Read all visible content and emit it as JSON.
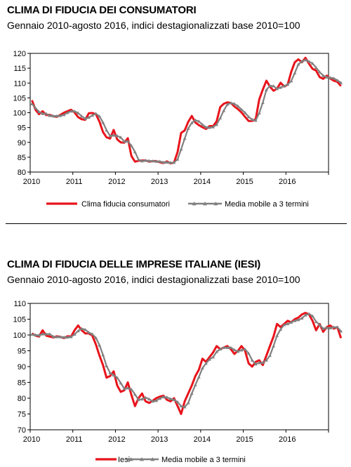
{
  "chart_data": [
    {
      "type": "line",
      "title": "CLIMA DI FIDUCIA DEI CONSUMATORI",
      "subtitle": "Gennaio 2010-agosto 2016, indici destagionalizzati base 2010=100",
      "x_tick_labels": [
        "2010",
        "2011",
        "2012",
        "2013",
        "2014",
        "2015",
        "2016"
      ],
      "y_tick_labels": [
        "80",
        "85",
        "90",
        "95",
        "100",
        "105",
        "110",
        "115",
        "120"
      ],
      "ylim": [
        80,
        120
      ],
      "x_start": "2010-01",
      "x_end": "2016-08",
      "grid": false,
      "legend_position": "bottom",
      "series": [
        {
          "name": "Clima fiducia consumatori",
          "color": "#e8141b",
          "values": [
            104.2,
            101.0,
            99.5,
            100.5,
            99.2,
            99.3,
            98.8,
            98.6,
            99.3,
            100.0,
            100.5,
            101.0,
            100.1,
            98.5,
            97.8,
            97.6,
            99.8,
            99.9,
            99.5,
            97.0,
            93.5,
            91.7,
            91.3,
            94.2,
            91.0,
            90.0,
            89.9,
            91.4,
            85.4,
            83.5,
            83.8,
            83.9,
            83.9,
            83.5,
            83.7,
            83.7,
            83.3,
            83.0,
            83.6,
            82.9,
            83.2,
            86.8,
            93.2,
            94.0,
            96.9,
            98.9,
            96.7,
            95.8,
            95.1,
            94.5,
            95.5,
            95.5,
            97.1,
            101.9,
            103.0,
            103.5,
            103.3,
            102.1,
            101.2,
            100.1,
            98.6,
            97.2,
            97.2,
            97.9,
            104.5,
            107.8,
            110.8,
            108.8,
            107.4,
            108.1,
            110.1,
            108.8,
            109.5,
            113.8,
            117.0,
            118.0,
            117.0,
            118.5,
            116.5,
            114.8,
            114.2,
            112.0,
            111.4,
            112.5,
            111.5,
            110.8,
            110.4,
            109.0
          ]
        },
        {
          "name": "Media mobile a 3 termini",
          "color": "#808080",
          "values": [
            103.0,
            101.6,
            100.3,
            99.7,
            99.7,
            99.0,
            98.9,
            98.9,
            99.0,
            99.3,
            100.0,
            100.5,
            100.5,
            99.9,
            98.8,
            98.0,
            98.4,
            99.1,
            99.7,
            98.8,
            96.7,
            94.1,
            92.2,
            92.4,
            92.2,
            91.7,
            90.3,
            90.4,
            88.9,
            86.8,
            84.2,
            83.7,
            83.9,
            83.8,
            83.7,
            83.6,
            83.6,
            83.3,
            83.3,
            83.2,
            83.2,
            84.3,
            87.7,
            91.3,
            94.7,
            96.6,
            97.5,
            97.1,
            96.0,
            95.1,
            95.0,
            95.2,
            96.0,
            98.2,
            100.7,
            102.8,
            103.3,
            103.0,
            102.2,
            101.1,
            100.0,
            98.6,
            97.7,
            97.4,
            99.9,
            103.4,
            107.7,
            109.1,
            109.0,
            108.1,
            108.5,
            109.0,
            109.5,
            110.7,
            113.4,
            116.3,
            117.3,
            117.8,
            117.3,
            116.6,
            115.2,
            113.7,
            112.5,
            112.0,
            111.8,
            111.6,
            110.9,
            110.1
          ]
        }
      ]
    },
    {
      "type": "line",
      "title": "CLIMA DI FIDUCIA DELLE IMPRESE ITALIANE (IESI)",
      "subtitle": "Gennaio 2010-agosto 2016, indici destagionalizzati base 2010=100",
      "x_tick_labels": [
        "2010",
        "2011",
        "2012",
        "2013",
        "2014",
        "2015",
        "2016"
      ],
      "y_tick_labels": [
        "70",
        "75",
        "80",
        "85",
        "90",
        "95",
        "100",
        "105",
        "110"
      ],
      "ylim": [
        70,
        110
      ],
      "x_start": "2010-01",
      "x_end": "2016-08",
      "grid": false,
      "legend_position": "bottom",
      "series": [
        {
          "name": "Iesi",
          "color": "#e8141b",
          "values": [
            100.5,
            99.8,
            99.5,
            101.5,
            99.8,
            99.5,
            99.2,
            99.6,
            99.4,
            99.0,
            99.6,
            99.5,
            101.5,
            103.0,
            101.5,
            100.5,
            100.5,
            99.8,
            97.0,
            93.5,
            90.5,
            86.5,
            87.0,
            88.5,
            84.0,
            82.0,
            82.5,
            85.0,
            81.0,
            77.5,
            80.0,
            81.5,
            79.0,
            78.5,
            79.2,
            80.0,
            80.5,
            80.8,
            79.5,
            79.0,
            80.0,
            77.5,
            75.0,
            79.0,
            81.5,
            84.0,
            87.0,
            89.0,
            92.5,
            91.5,
            93.0,
            94.5,
            96.5,
            95.5,
            96.0,
            96.5,
            95.5,
            94.0,
            95.0,
            96.5,
            95.0,
            91.0,
            90.0,
            91.5,
            92.0,
            90.5,
            93.5,
            96.5,
            99.5,
            103.5,
            102.5,
            103.5,
            104.5,
            104.0,
            105.0,
            105.5,
            106.5,
            107.0,
            106.5,
            104.5,
            101.5,
            103.5,
            101.0,
            102.5,
            103.0,
            102.0,
            102.5,
            99.0
          ]
        },
        {
          "name": "Media mobile a 3 termini",
          "color": "#808080",
          "values": [
            100.2,
            100.0,
            99.9,
            100.3,
            100.3,
            100.3,
            99.5,
            99.4,
            99.4,
            99.3,
            99.3,
            99.4,
            100.2,
            101.3,
            102.0,
            101.7,
            100.8,
            100.3,
            99.1,
            96.8,
            93.7,
            90.2,
            88.0,
            87.3,
            86.5,
            84.8,
            83.0,
            83.2,
            82.8,
            81.2,
            79.5,
            79.7,
            80.2,
            79.7,
            79.0,
            79.2,
            79.9,
            80.4,
            80.3,
            79.8,
            79.5,
            78.8,
            77.5,
            77.2,
            78.5,
            81.5,
            84.2,
            86.7,
            89.5,
            91.0,
            92.3,
            93.0,
            94.7,
            95.5,
            96.0,
            96.0,
            96.0,
            95.3,
            94.8,
            95.2,
            95.5,
            94.2,
            92.0,
            90.8,
            91.2,
            91.3,
            92.0,
            93.5,
            96.5,
            99.8,
            101.8,
            103.2,
            103.5,
            104.0,
            104.5,
            104.8,
            105.3,
            106.3,
            106.7,
            106.0,
            104.2,
            103.2,
            102.0,
            102.3,
            102.2,
            102.5,
            102.5,
            101.2
          ]
        }
      ]
    }
  ]
}
